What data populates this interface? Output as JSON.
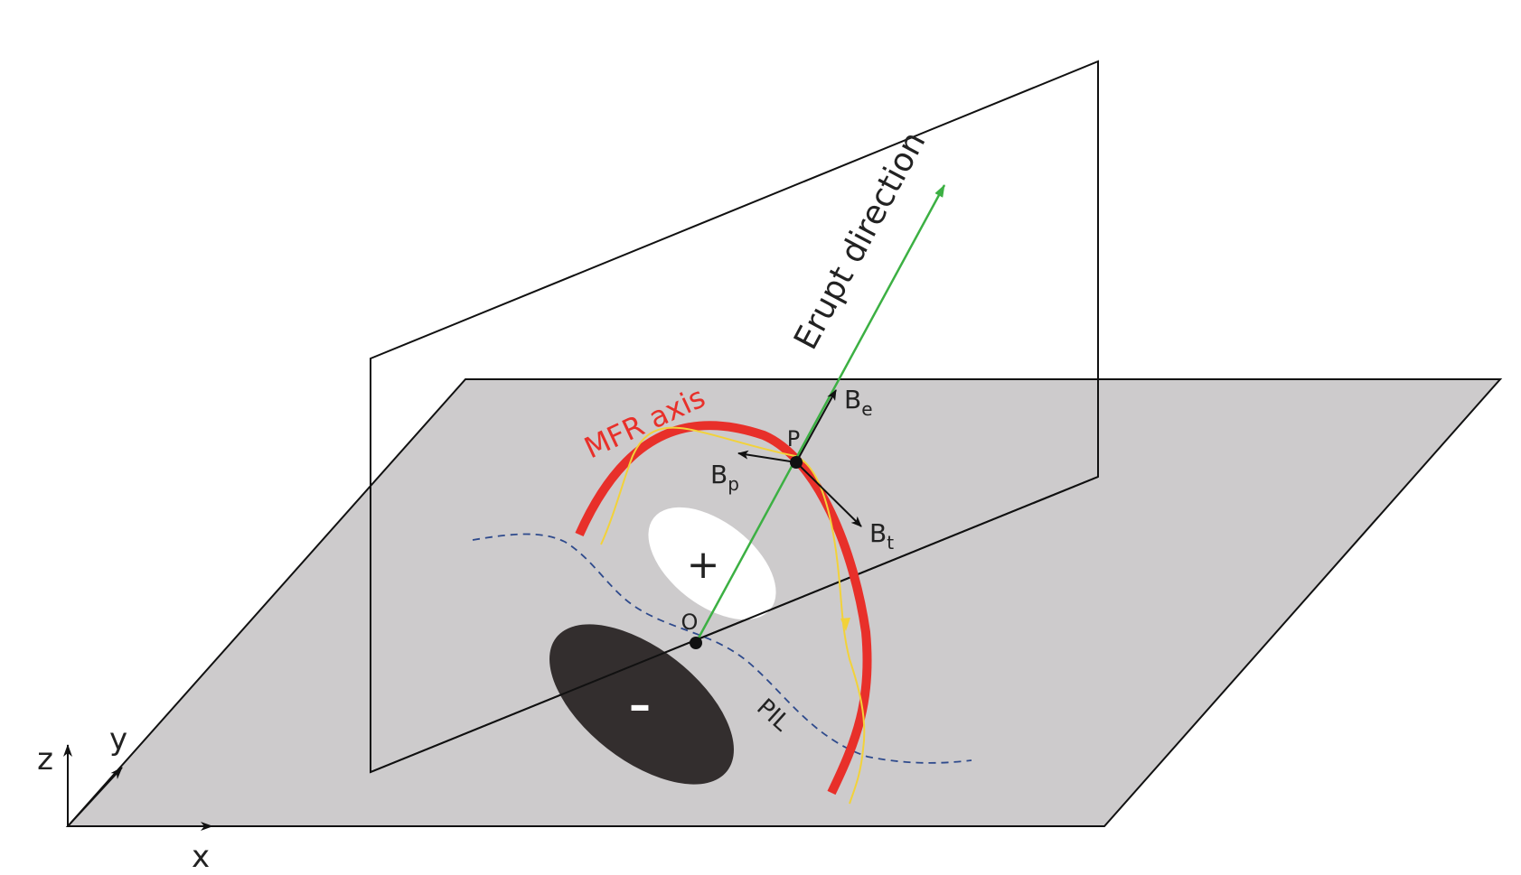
{
  "labels": {
    "erupt_direction": "Erupt direction",
    "mfr_axis": "MFR axis",
    "point_p": "P",
    "point_o": "O",
    "b_e": "B",
    "b_e_sub": "e",
    "b_p": "B",
    "b_p_sub": "p",
    "b_t": "B",
    "b_t_sub": "t",
    "positive_polarity": "+",
    "negative_polarity": "–",
    "pil": "PIL",
    "axis_x": "x",
    "axis_y": "y",
    "axis_z": "z"
  },
  "colors": {
    "plane_fill": "#cdcbcc",
    "mfr_axis": "#e8302a",
    "field_line": "#f2d23a",
    "erupt_arrow": "#3cb043",
    "pil_line": "#2e4a8c",
    "negative_spot": "#332e2e",
    "positive_spot": "#ffffff"
  }
}
